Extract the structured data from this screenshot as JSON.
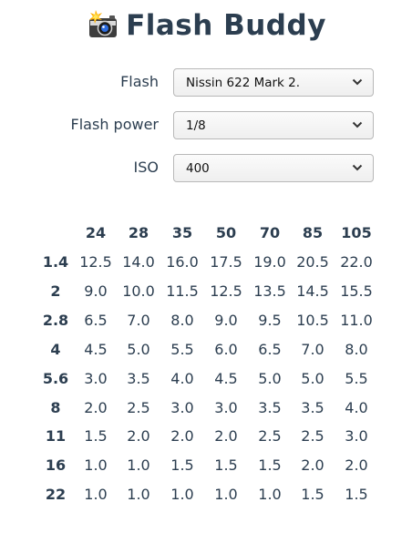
{
  "app": {
    "title": "Flash Buddy",
    "logo_icon": "camera-flash-icon"
  },
  "form": {
    "flash": {
      "label": "Flash",
      "value": "Nissin 622 Mark 2."
    },
    "power": {
      "label": "Flash power",
      "value": "1/8"
    },
    "iso": {
      "label": "ISO",
      "value": "400"
    }
  },
  "table": {
    "columns": [
      "24",
      "28",
      "35",
      "50",
      "70",
      "85",
      "105"
    ],
    "rows": [
      {
        "aperture": "1.4",
        "values": [
          "12.5",
          "14.0",
          "16.0",
          "17.5",
          "19.0",
          "20.5",
          "22.0"
        ]
      },
      {
        "aperture": "2",
        "values": [
          "9.0",
          "10.0",
          "11.5",
          "12.5",
          "13.5",
          "14.5",
          "15.5"
        ]
      },
      {
        "aperture": "2.8",
        "values": [
          "6.5",
          "7.0",
          "8.0",
          "9.0",
          "9.5",
          "10.5",
          "11.0"
        ]
      },
      {
        "aperture": "4",
        "values": [
          "4.5",
          "5.0",
          "5.5",
          "6.0",
          "6.5",
          "7.0",
          "8.0"
        ]
      },
      {
        "aperture": "5.6",
        "values": [
          "3.0",
          "3.5",
          "4.0",
          "4.5",
          "5.0",
          "5.0",
          "5.5"
        ]
      },
      {
        "aperture": "8",
        "values": [
          "2.0",
          "2.5",
          "3.0",
          "3.0",
          "3.5",
          "3.5",
          "4.0"
        ]
      },
      {
        "aperture": "11",
        "values": [
          "1.5",
          "2.0",
          "2.0",
          "2.0",
          "2.5",
          "2.5",
          "3.0"
        ]
      },
      {
        "aperture": "16",
        "values": [
          "1.0",
          "1.0",
          "1.5",
          "1.5",
          "1.5",
          "2.0",
          "2.0"
        ]
      },
      {
        "aperture": "22",
        "values": [
          "1.0",
          "1.0",
          "1.0",
          "1.0",
          "1.0",
          "1.5",
          "1.5"
        ]
      }
    ]
  }
}
